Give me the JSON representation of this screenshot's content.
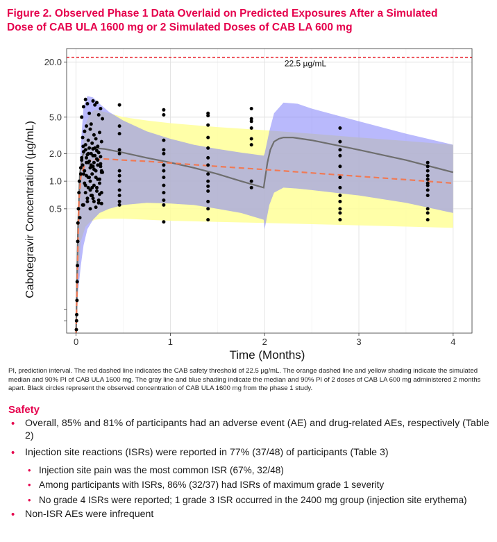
{
  "figure": {
    "title_line1": "Figure 2. Observed Phase 1 Data Overlaid on Predicted Exposures After a Simulated",
    "title_line2": "Dose of CAB ULA 1600 mg or 2 Simulated Doses of CAB LA 600 mg",
    "caption": "PI, prediction interval. The red dashed line indicates the CAB safety threshold of 22.5 µg/mL. The orange dashed line and yellow shading indicate the simulated median and 90% PI of CAB ULA 1600 mg. The gray line and blue shading indicate the median and 90% PI of 2 doses of CAB LA 600 mg administered 2 months apart. Black circles represent the observed concentration of CAB ULA 1600 mg from the phase 1 study."
  },
  "colors": {
    "title": "#e5004c",
    "threshold_line": "#e8202a",
    "ula_median": "#f07a55",
    "ula_pi": "#ffff99",
    "la_pi": "#7f7ffa",
    "la_median": "#6e6e6e",
    "observed": "#000000"
  },
  "chart_data": {
    "type": "scatter",
    "xlabel": "Time (Months)",
    "ylabel": "Cabotegravir Concentration (µg/mL)",
    "y_scale": "log",
    "xlim": [
      -0.1,
      4.2
    ],
    "ylim": [
      0.022,
      28
    ],
    "x_ticks": [
      0,
      1,
      2,
      3,
      4
    ],
    "x_tick_labels": [
      "0",
      "1",
      "2",
      "3",
      "4"
    ],
    "y_ticks": [
      0.5,
      1.0,
      2.0,
      5.0,
      20.0
    ],
    "y_tick_labels": [
      "0.5",
      "1.0",
      "2.0",
      "5.0",
      "20.0"
    ],
    "y_minor_ticks": [
      0.03,
      0.04
    ],
    "grid": true,
    "threshold": {
      "value": 22.5,
      "label": "22.5 µg/mL"
    },
    "ula_pi": {
      "x": [
        0.0,
        0.02,
        0.05,
        0.1,
        0.15,
        0.2,
        0.3,
        0.5,
        0.75,
        1.0,
        1.5,
        2.0,
        2.5,
        3.0,
        3.5,
        4.0
      ],
      "upper": [
        0.02,
        0.2,
        1.5,
        4.2,
        5.5,
        6.0,
        5.7,
        5.0,
        4.6,
        4.3,
        3.9,
        3.6,
        3.3,
        3.0,
        2.75,
        2.5
      ],
      "lower": [
        0.02,
        0.08,
        0.22,
        0.32,
        0.36,
        0.38,
        0.39,
        0.39,
        0.38,
        0.37,
        0.36,
        0.35,
        0.34,
        0.33,
        0.32,
        0.31
      ]
    },
    "la_pi": {
      "x": [
        0.0,
        0.02,
        0.05,
        0.08,
        0.12,
        0.18,
        0.25,
        0.35,
        0.5,
        0.75,
        1.0,
        1.25,
        1.5,
        1.75,
        1.99,
        2.0,
        2.05,
        2.1,
        2.2,
        2.35,
        2.5,
        3.0,
        3.5,
        4.0
      ],
      "upper": [
        0.02,
        0.4,
        2.5,
        6.5,
        8.5,
        8.2,
        7.0,
        5.7,
        4.6,
        3.5,
        2.9,
        2.5,
        2.25,
        2.05,
        1.9,
        2.0,
        3.5,
        5.5,
        7.2,
        7.0,
        6.2,
        4.5,
        3.3,
        2.5
      ],
      "lower": [
        0.02,
        0.06,
        0.12,
        0.2,
        0.3,
        0.38,
        0.45,
        0.5,
        0.55,
        0.58,
        0.57,
        0.55,
        0.5,
        0.45,
        0.38,
        0.3,
        0.55,
        0.75,
        0.85,
        0.83,
        0.8,
        0.7,
        0.58,
        0.45
      ]
    },
    "ula_median": {
      "x": [
        0.0,
        0.01,
        0.02,
        0.03,
        0.05,
        0.08,
        0.1,
        0.15,
        0.2,
        0.3,
        0.5,
        0.75,
        1.0,
        1.5,
        2.0,
        2.5,
        3.0,
        3.5,
        4.0
      ],
      "y": [
        0.022,
        0.06,
        0.2,
        0.6,
        1.1,
        1.4,
        1.55,
        1.68,
        1.72,
        1.75,
        1.7,
        1.65,
        1.58,
        1.45,
        1.34,
        1.23,
        1.13,
        1.04,
        0.95
      ]
    },
    "la_median": {
      "x": [
        0.0,
        0.02,
        0.04,
        0.07,
        0.1,
        0.15,
        0.2,
        0.3,
        0.5,
        0.75,
        1.0,
        1.25,
        1.5,
        1.75,
        1.99,
        2.0,
        2.03,
        2.06,
        2.1,
        2.15,
        2.2,
        2.3,
        2.5,
        3.0,
        3.5,
        4.0
      ],
      "y": [
        0.022,
        0.3,
        1.2,
        1.9,
        2.2,
        2.3,
        2.3,
        2.25,
        2.05,
        1.8,
        1.6,
        1.4,
        1.2,
        1.0,
        0.85,
        1.0,
        1.6,
        2.2,
        2.7,
        2.9,
        3.0,
        3.0,
        2.8,
        2.2,
        1.7,
        1.25
      ]
    },
    "observed": {
      "x": [
        0.003,
        0.005,
        0.007,
        0.01,
        0.012,
        0.015,
        0.018,
        0.02,
        0.025,
        0.03,
        0.035,
        0.04,
        0.05,
        0.06,
        0.07,
        0.075,
        0.08,
        0.09,
        0.1,
        0.11,
        0.12,
        0.13,
        0.14,
        0.15,
        0.16,
        0.17,
        0.18,
        0.19,
        0.2,
        0.21,
        0.22,
        0.23,
        0.24,
        0.25,
        0.26,
        0.27,
        0.28,
        0.06,
        0.08,
        0.1,
        0.12,
        0.14,
        0.16,
        0.18,
        0.2,
        0.22,
        0.24,
        0.26,
        0.28,
        0.07,
        0.09,
        0.11,
        0.13,
        0.15,
        0.17,
        0.19,
        0.21,
        0.23,
        0.25,
        0.27,
        0.08,
        0.1,
        0.12,
        0.14,
        0.16,
        0.18,
        0.2,
        0.22,
        0.24,
        0.26,
        0.09,
        0.11,
        0.13,
        0.15,
        0.17,
        0.19,
        0.21,
        0.23,
        0.25,
        0.27,
        0.1,
        0.13,
        0.16,
        0.19,
        0.22,
        0.25,
        0.08,
        0.12,
        0.15,
        0.18,
        0.21,
        0.24,
        0.27,
        0.05,
        0.07,
        0.09,
        0.11,
        0.13,
        0.15,
        0.17,
        0.19,
        0.23,
        0.27,
        0.06,
        0.1,
        0.14,
        0.18,
        0.22,
        0.26,
        0.46,
        0.46,
        0.46,
        0.46,
        0.46,
        0.46,
        0.46,
        0.46,
        0.46,
        0.46,
        0.46,
        0.46,
        0.93,
        0.93,
        0.93,
        0.93,
        0.93,
        0.93,
        0.93,
        0.93,
        0.93,
        0.93,
        0.93,
        0.93,
        0.93,
        1.4,
        1.4,
        1.4,
        1.4,
        1.4,
        1.4,
        1.4,
        1.4,
        1.4,
        1.4,
        1.4,
        1.4,
        1.4,
        1.4,
        1.86,
        1.86,
        1.86,
        1.86,
        1.86,
        1.86,
        1.86,
        1.86,
        2.8,
        2.8,
        2.8,
        2.8,
        2.8,
        2.8,
        2.8,
        2.8,
        2.8,
        2.8,
        2.8,
        2.8,
        3.73,
        3.73,
        3.73,
        3.73,
        3.73,
        3.73,
        3.73,
        3.73,
        3.73,
        3.73,
        3.73,
        3.73
      ],
      "y": [
        0.024,
        0.03,
        0.035,
        0.05,
        0.08,
        0.12,
        0.22,
        0.35,
        0.5,
        0.75,
        1.0,
        0.4,
        1.4,
        1.8,
        0.55,
        2.4,
        1.2,
        3.5,
        0.9,
        1.6,
        0.65,
        2.0,
        1.1,
        0.8,
        1.5,
        0.7,
        1.9,
        0.6,
        2.3,
        1.3,
        0.85,
        1.7,
        0.58,
        1.05,
        1.45,
        0.75,
        1.25,
        5.0,
        6.5,
        7.8,
        7.0,
        5.5,
        4.2,
        7.5,
        6.8,
        7.2,
        5.3,
        6.2,
        4.8,
        3.0,
        3.5,
        4.0,
        2.8,
        3.7,
        2.6,
        3.2,
        2.9,
        2.4,
        3.4,
        2.7,
        2.1,
        2.2,
        1.95,
        2.3,
        2.0,
        2.25,
        1.9,
        2.15,
        2.05,
        1.85,
        1.3,
        1.15,
        1.6,
        1.0,
        1.2,
        1.35,
        1.1,
        1.5,
        0.95,
        1.25,
        0.75,
        0.85,
        0.7,
        0.9,
        0.78,
        0.72,
        0.55,
        0.6,
        0.5,
        0.65,
        0.52,
        0.62,
        0.57,
        1.2,
        1.5,
        0.95,
        1.8,
        1.1,
        1.4,
        0.85,
        1.6,
        1.05,
        1.3,
        1.7,
        2.5,
        1.65,
        1.45,
        1.75,
        1.55,
        6.8,
        4.0,
        3.3,
        2.2,
        2.0,
        1.3,
        1.15,
        1.0,
        0.8,
        0.7,
        0.6,
        0.55,
        6.0,
        5.3,
        2.8,
        2.2,
        2.0,
        1.5,
        1.3,
        1.1,
        0.9,
        0.75,
        0.62,
        0.55,
        0.36,
        5.5,
        5.2,
        4.1,
        3.0,
        2.3,
        1.8,
        1.5,
        1.2,
        1.0,
        0.88,
        0.78,
        0.6,
        0.5,
        0.38,
        6.2,
        4.8,
        4.5,
        3.8,
        2.9,
        2.5,
        1.0,
        0.85,
        3.8,
        2.7,
        2.2,
        1.9,
        1.45,
        1.1,
        0.85,
        0.7,
        0.6,
        0.5,
        0.45,
        0.38,
        1.6,
        1.45,
        1.3,
        1.15,
        1.05,
        0.95,
        0.9,
        0.8,
        0.7,
        0.5,
        0.45,
        0.38
      ]
    }
  },
  "safety": {
    "heading": "Safety",
    "bullets": [
      "Overall, 85% and 81% of participants had an adverse event (AE) and drug-related AEs, respectively (Table 2)",
      "Injection site reactions (ISRs) were reported in 77% (37/48) of participants (Table 3)",
      "Injection site pain was the most common ISR (67%, 32/48)",
      "Among participants with ISRs, 86% (32/37) had ISRs of maximum grade 1 severity",
      "No grade 4 ISRs were reported; 1 grade 3 ISR occurred in the 2400 mg group (injection site erythema)",
      "Non-ISR AEs were infrequent"
    ]
  }
}
